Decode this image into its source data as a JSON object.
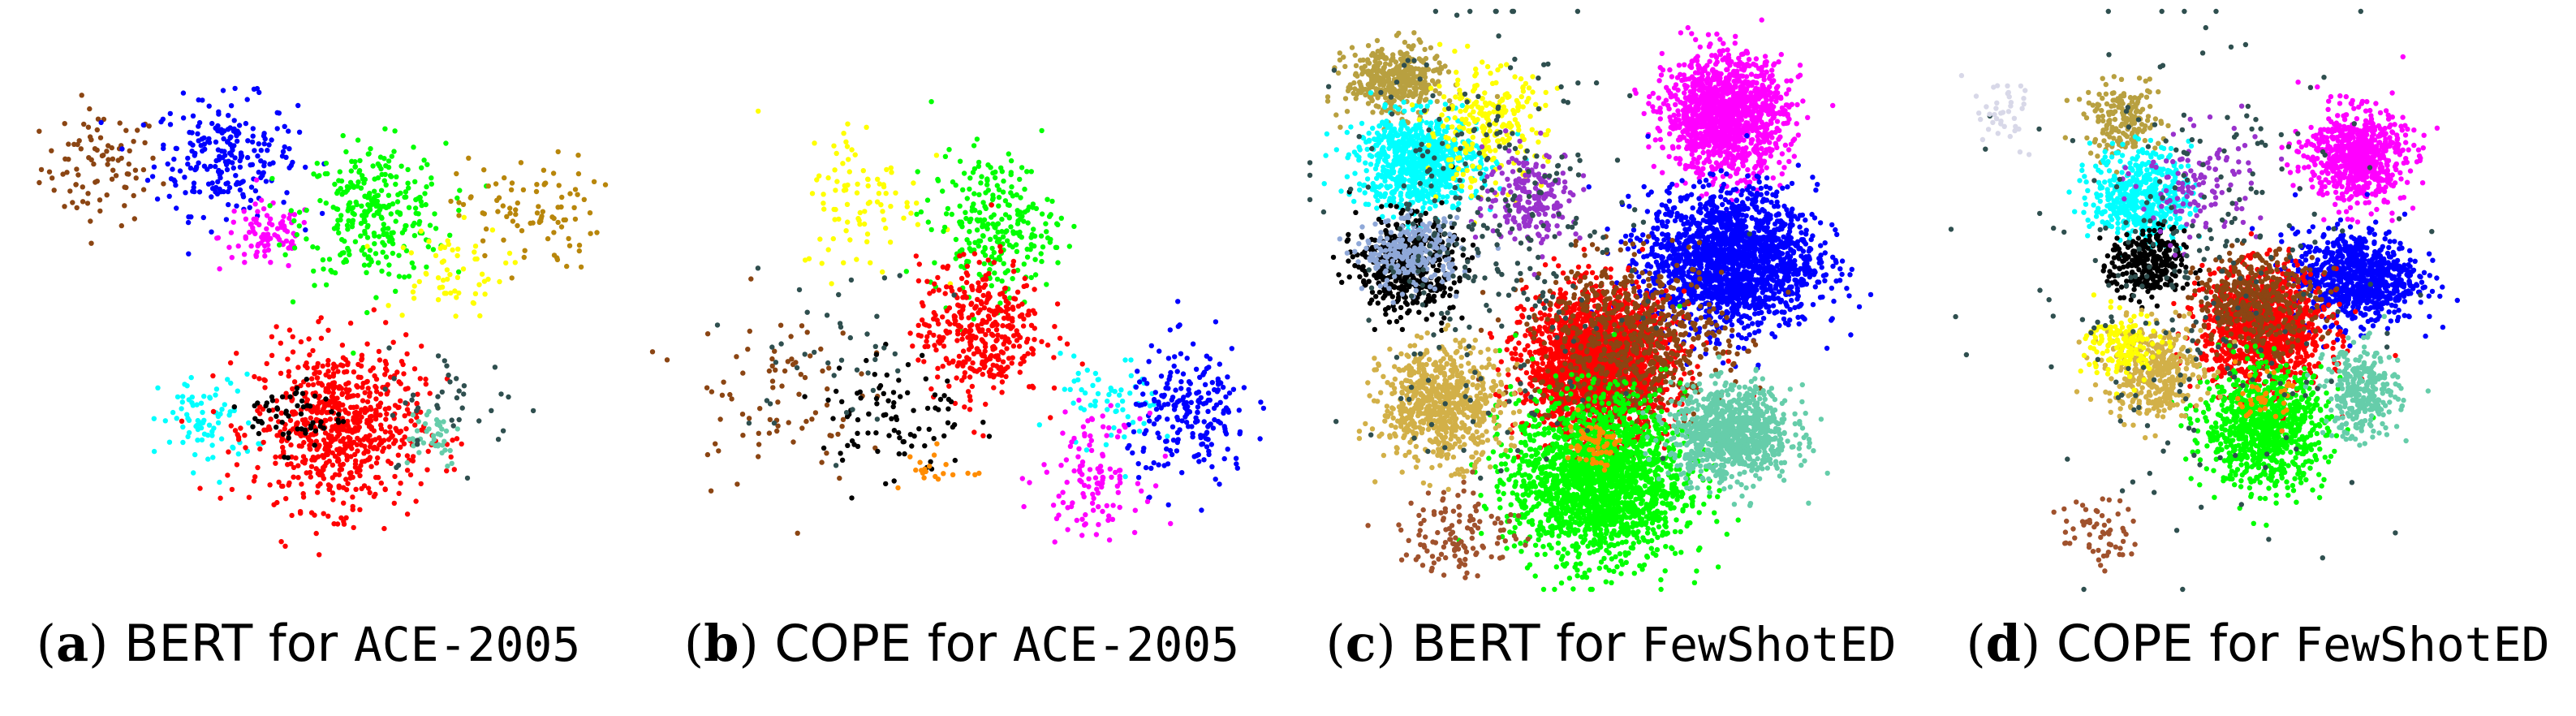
{
  "chart_data": [
    {
      "type": "scatter",
      "letter": "a",
      "model": "BERT",
      "connector": "for",
      "dataset": "ACE-2005",
      "xlim": [
        0,
        100
      ],
      "ylim": [
        0,
        100
      ],
      "clusters": [
        {
          "color": "#8B4513",
          "cx": 15,
          "cy": 73,
          "sx": 5,
          "sy": 5,
          "n": 90
        },
        {
          "color": "#0000FF",
          "cx": 36,
          "cy": 75,
          "sx": 6,
          "sy": 5,
          "n": 230
        },
        {
          "color": "#FF00FF",
          "cx": 43,
          "cy": 61,
          "sx": 4,
          "sy": 3,
          "n": 90
        },
        {
          "color": "#00FF00",
          "cx": 61,
          "cy": 65,
          "sx": 6,
          "sy": 6,
          "n": 300
        },
        {
          "color": "#FFFF00",
          "cx": 73,
          "cy": 55,
          "sx": 5,
          "sy": 4,
          "n": 60
        },
        {
          "color": "#B8860B",
          "cx": 87,
          "cy": 65,
          "sx": 6,
          "sy": 5,
          "n": 90
        },
        {
          "color": "#00FFFF",
          "cx": 33,
          "cy": 29,
          "sx": 4,
          "sy": 4,
          "n": 80
        },
        {
          "color": "#FF0000",
          "cx": 55,
          "cy": 28,
          "sx": 7,
          "sy": 7,
          "n": 700
        },
        {
          "color": "#000000",
          "cx": 48,
          "cy": 30,
          "sx": 4,
          "sy": 3,
          "n": 60
        },
        {
          "color": "#66CDAA",
          "cx": 70,
          "cy": 27,
          "sx": 3,
          "sy": 3,
          "n": 40
        },
        {
          "color": "#2F4F4F",
          "cx": 75,
          "cy": 32,
          "sx": 6,
          "sy": 5,
          "n": 40
        }
      ]
    },
    {
      "type": "scatter",
      "letter": "b",
      "model": "COPE",
      "connector": "for",
      "dataset": "ACE-2005",
      "xlim": [
        0,
        100
      ],
      "ylim": [
        0,
        100
      ],
      "clusters": [
        {
          "color": "#FFFF00",
          "cx": 34,
          "cy": 68,
          "sx": 5,
          "sy": 7,
          "n": 90
        },
        {
          "color": "#00FF00",
          "cx": 55,
          "cy": 63,
          "sx": 5,
          "sy": 6,
          "n": 260
        },
        {
          "color": "#FF0000",
          "cx": 53,
          "cy": 45,
          "sx": 5,
          "sy": 6,
          "n": 380
        },
        {
          "color": "#8B4513",
          "cx": 19,
          "cy": 34,
          "sx": 7,
          "sy": 8,
          "n": 80
        },
        {
          "color": "#000000",
          "cx": 39,
          "cy": 30,
          "sx": 6,
          "sy": 6,
          "n": 90
        },
        {
          "color": "#00FFFF",
          "cx": 74,
          "cy": 32,
          "sx": 4,
          "sy": 4,
          "n": 60
        },
        {
          "color": "#0000FF",
          "cx": 87,
          "cy": 30,
          "sx": 5,
          "sy": 6,
          "n": 220
        },
        {
          "color": "#FF00FF",
          "cx": 71,
          "cy": 20,
          "sx": 4,
          "sy": 5,
          "n": 120
        },
        {
          "color": "#FF8C00",
          "cx": 46,
          "cy": 21,
          "sx": 3,
          "sy": 2,
          "n": 20
        },
        {
          "color": "#2F4F4F",
          "cx": 30,
          "cy": 40,
          "sx": 8,
          "sy": 8,
          "n": 40
        }
      ]
    },
    {
      "type": "scatter",
      "letter": "c",
      "model": "BERT",
      "connector": "for",
      "dataset": "FewShotED",
      "xlim": [
        0,
        100
      ],
      "ylim": [
        0,
        100
      ],
      "clusters": [
        {
          "color": "#B8A040",
          "cx": 14,
          "cy": 88,
          "sx": 4,
          "sy": 3,
          "n": 400
        },
        {
          "color": "#FF00FF",
          "cx": 69,
          "cy": 82,
          "sx": 5,
          "sy": 5,
          "n": 1300
        },
        {
          "color": "#00FFFF",
          "cx": 18,
          "cy": 74,
          "sx": 5,
          "sy": 4,
          "n": 800
        },
        {
          "color": "#000000",
          "cx": 16,
          "cy": 56,
          "sx": 4,
          "sy": 4,
          "n": 500
        },
        {
          "color": "#0000FF",
          "cx": 70,
          "cy": 57,
          "sx": 7,
          "sy": 6,
          "n": 1800
        },
        {
          "color": "#FF0000",
          "cx": 48,
          "cy": 39,
          "sx": 6,
          "sy": 6,
          "n": 2200
        },
        {
          "color": "#8B4513",
          "cx": 53,
          "cy": 43,
          "sx": 8,
          "sy": 7,
          "n": 700
        },
        {
          "color": "#00FF00",
          "cx": 48,
          "cy": 19,
          "sx": 7,
          "sy": 7,
          "n": 2000
        },
        {
          "color": "#66CDAA",
          "cx": 70,
          "cy": 27,
          "sx": 5,
          "sy": 4,
          "n": 900
        },
        {
          "color": "#D2B048",
          "cx": 22,
          "cy": 32,
          "sx": 5,
          "sy": 5,
          "n": 700
        },
        {
          "color": "#FF8C00",
          "cx": 47,
          "cy": 25,
          "sx": 2,
          "sy": 2,
          "n": 60
        },
        {
          "color": "#FFFF00",
          "cx": 29,
          "cy": 80,
          "sx": 5,
          "sy": 5,
          "n": 250
        },
        {
          "color": "#9932CC",
          "cx": 37,
          "cy": 68,
          "sx": 4,
          "sy": 4,
          "n": 200
        },
        {
          "color": "#8FA8D8",
          "cx": 17,
          "cy": 58,
          "sx": 4,
          "sy": 3,
          "n": 250
        },
        {
          "color": "#2F4F4F",
          "cx": 30,
          "cy": 60,
          "sx": 12,
          "sy": 18,
          "n": 300
        },
        {
          "color": "#A0522D",
          "cx": 25,
          "cy": 10,
          "sx": 5,
          "sy": 4,
          "n": 120
        }
      ]
    },
    {
      "type": "scatter",
      "letter": "d",
      "model": "COPE",
      "connector": "for",
      "dataset": "FewShotED",
      "xlim": [
        0,
        100
      ],
      "ylim": [
        0,
        100
      ],
      "clusters": [
        {
          "color": "#B8A040",
          "cx": 28,
          "cy": 81,
          "sx": 3,
          "sy": 3,
          "n": 180
        },
        {
          "color": "#FF00FF",
          "cx": 66,
          "cy": 75,
          "sx": 4,
          "sy": 4,
          "n": 700
        },
        {
          "color": "#00FFFF",
          "cx": 31,
          "cy": 68,
          "sx": 4,
          "sy": 4,
          "n": 500
        },
        {
          "color": "#000000",
          "cx": 32,
          "cy": 56,
          "sx": 3,
          "sy": 3,
          "n": 300
        },
        {
          "color": "#0000FF",
          "cx": 66,
          "cy": 54,
          "sx": 5,
          "sy": 4,
          "n": 800
        },
        {
          "color": "#FF0000",
          "cx": 51,
          "cy": 45,
          "sx": 5,
          "sy": 5,
          "n": 1100
        },
        {
          "color": "#8B4513",
          "cx": 50,
          "cy": 50,
          "sx": 5,
          "sy": 4,
          "n": 400
        },
        {
          "color": "#00FF00",
          "cx": 51,
          "cy": 28,
          "sx": 5,
          "sy": 5,
          "n": 900
        },
        {
          "color": "#66CDAA",
          "cx": 67,
          "cy": 34,
          "sx": 3,
          "sy": 4,
          "n": 300
        },
        {
          "color": "#D2B048",
          "cx": 33,
          "cy": 38,
          "sx": 4,
          "sy": 4,
          "n": 400
        },
        {
          "color": "#FFFF00",
          "cx": 28,
          "cy": 42,
          "sx": 3,
          "sy": 3,
          "n": 150
        },
        {
          "color": "#FF8C00",
          "cx": 51,
          "cy": 33,
          "sx": 2,
          "sy": 2,
          "n": 40
        },
        {
          "color": "#9932CC",
          "cx": 40,
          "cy": 70,
          "sx": 5,
          "sy": 5,
          "n": 120
        },
        {
          "color": "#2F4F4F",
          "cx": 40,
          "cy": 55,
          "sx": 14,
          "sy": 20,
          "n": 250
        },
        {
          "color": "#D8D8E8",
          "cx": 8,
          "cy": 82,
          "sx": 3,
          "sy": 3,
          "n": 40
        },
        {
          "color": "#A0522D",
          "cx": 24,
          "cy": 10,
          "sx": 3,
          "sy": 3,
          "n": 60
        }
      ]
    }
  ]
}
